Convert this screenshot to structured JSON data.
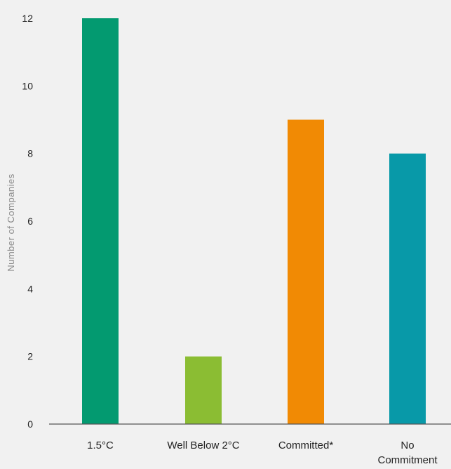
{
  "chart_data": {
    "type": "bar",
    "categories": [
      "1.5°C",
      "Well Below 2°C",
      "Committed*",
      "No Commitment"
    ],
    "category_lines": [
      [
        "1.5°C"
      ],
      [
        "Well Below 2°C"
      ],
      [
        "Committed*"
      ],
      [
        "No",
        "Commitment"
      ]
    ],
    "values": [
      12,
      2,
      9,
      8
    ],
    "colors": [
      "#039a70",
      "#8bbd33",
      "#f18a04",
      "#0899a8"
    ],
    "title": "",
    "xlabel": "",
    "ylabel": "Number of Companies",
    "ylim": [
      0,
      12
    ],
    "yticks": [
      0,
      2,
      4,
      6,
      8,
      10,
      12
    ],
    "grid": false,
    "legend": "none"
  }
}
